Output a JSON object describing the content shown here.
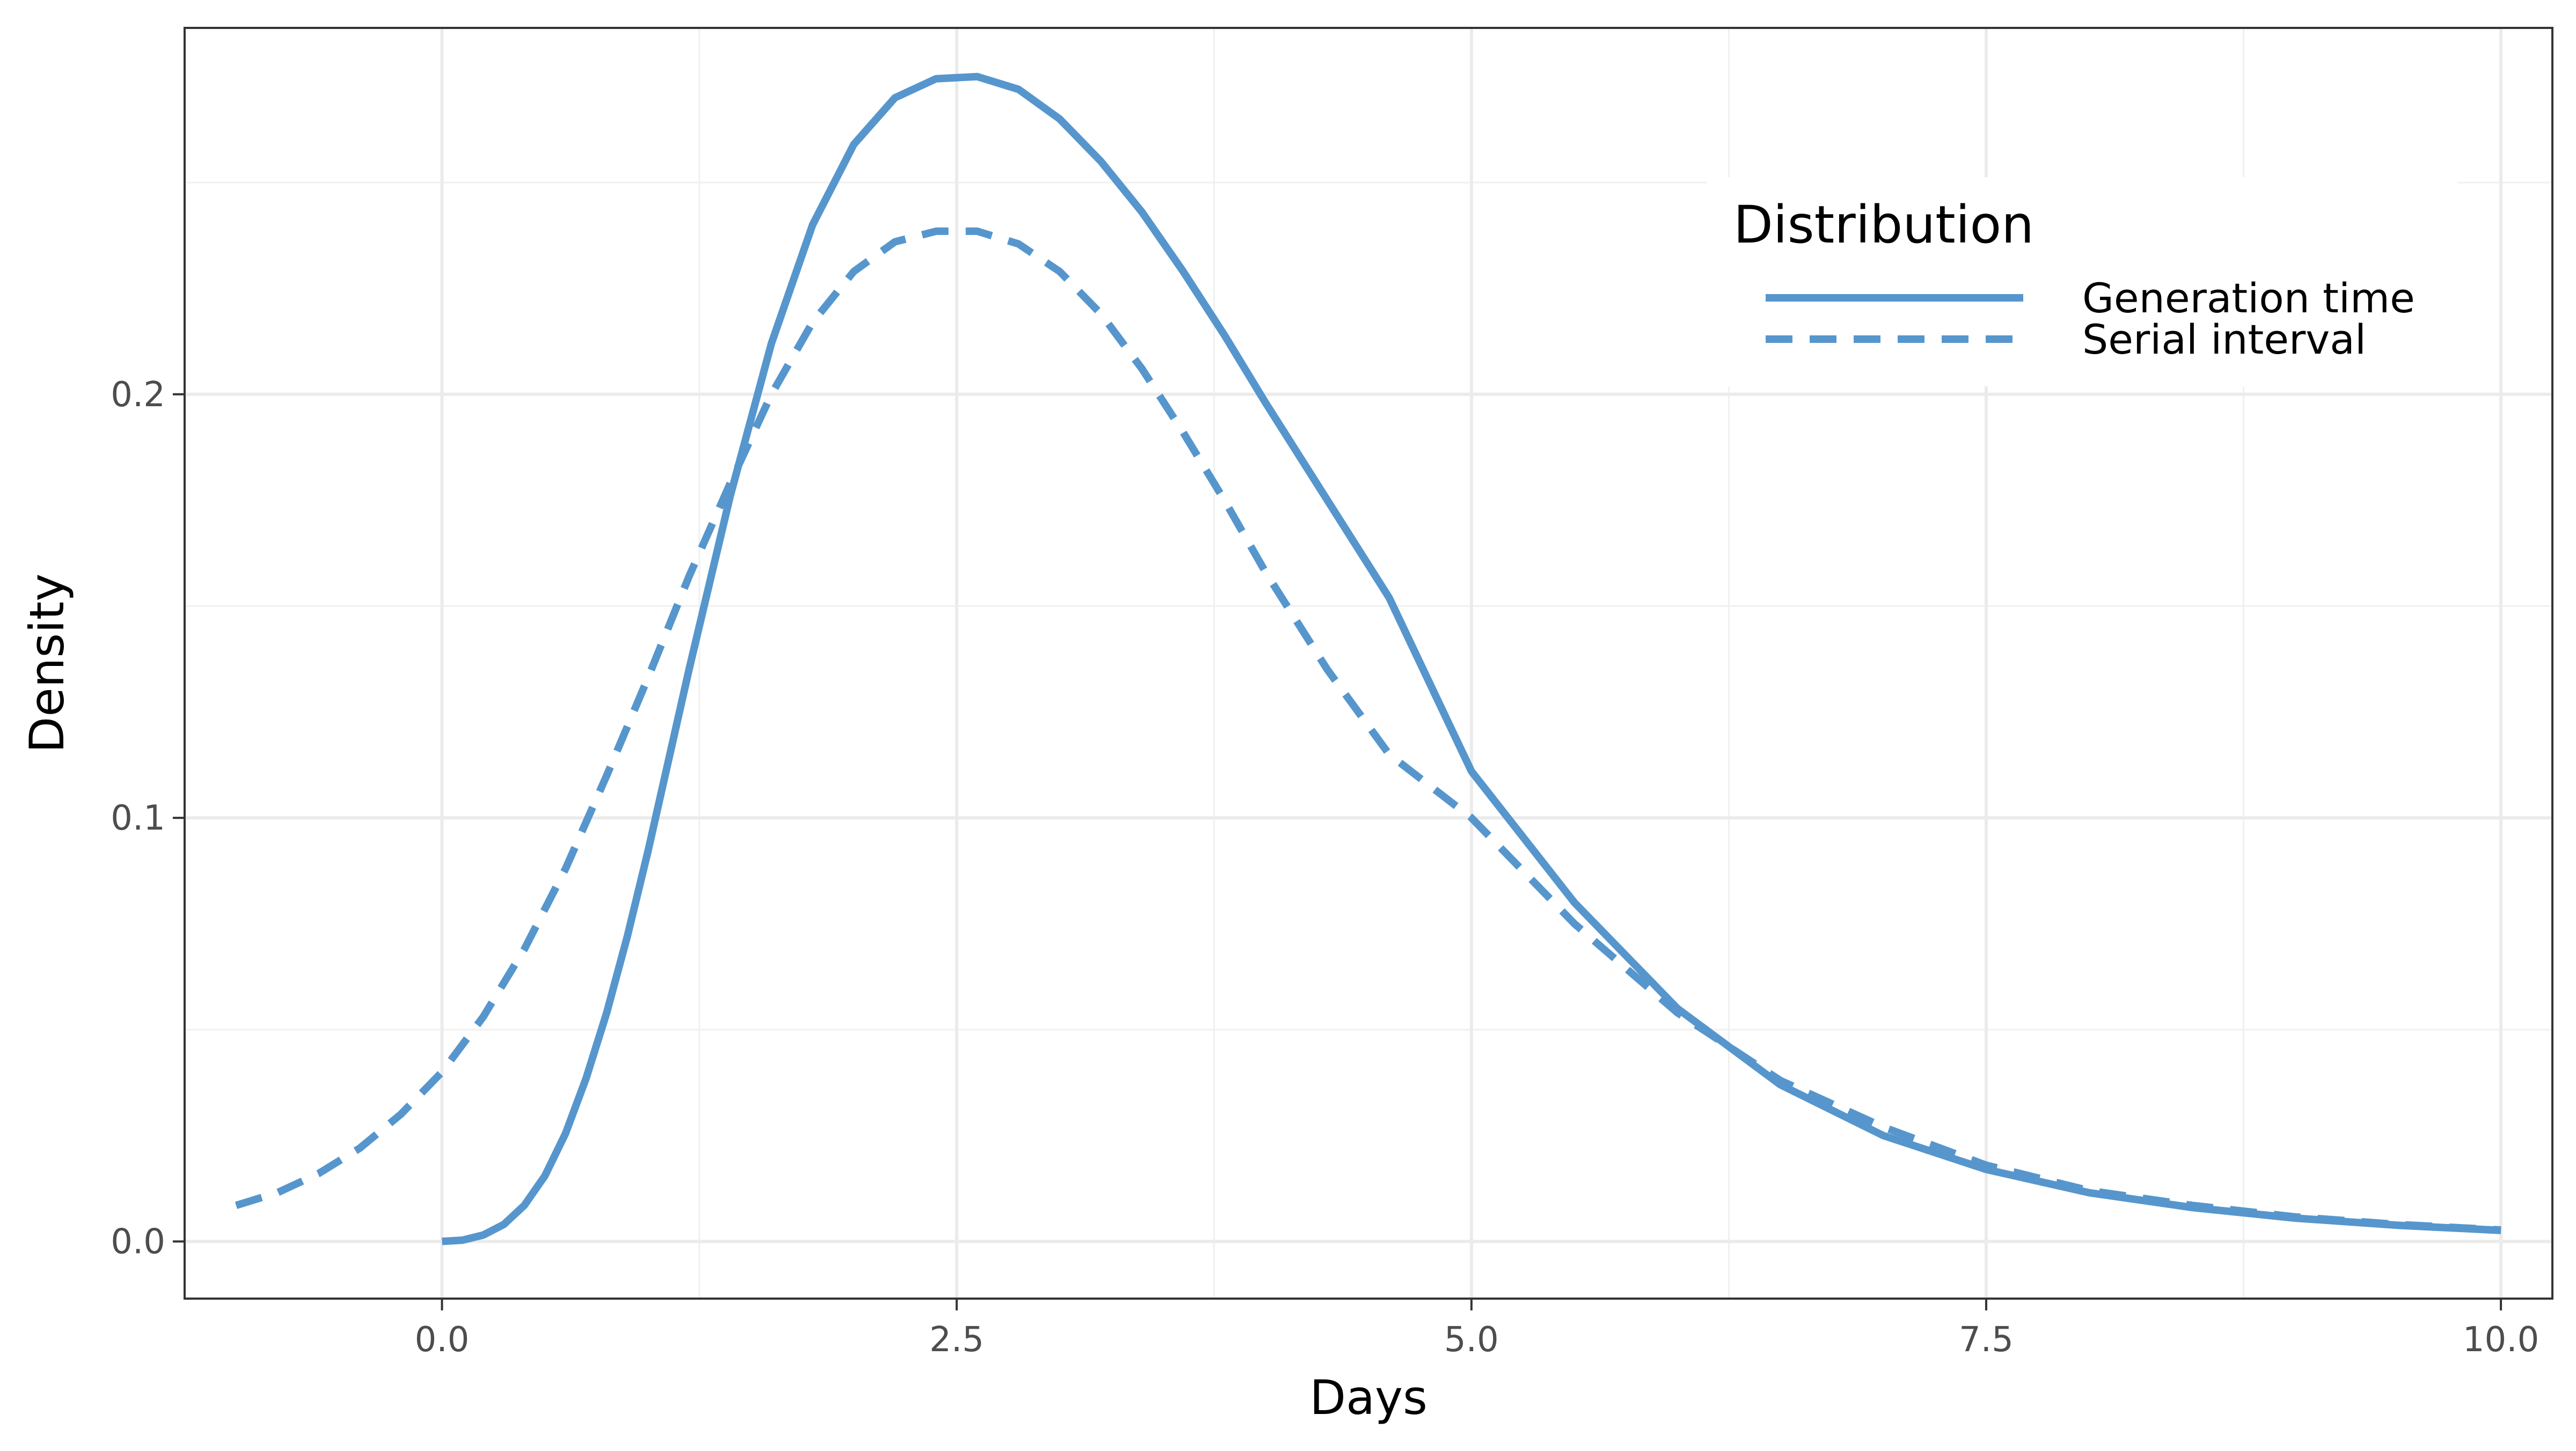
{
  "chart_data": {
    "type": "line",
    "title": "",
    "xlabel": "Days",
    "ylabel": "Density",
    "xlim": [
      -1.25,
      10.25
    ],
    "ylim": [
      -0.0135,
      0.2865
    ],
    "xticks": [
      0.0,
      2.5,
      5.0,
      7.5,
      10.0
    ],
    "xtick_labels": [
      "0.0",
      "2.5",
      "5.0",
      "7.5",
      "10.0"
    ],
    "yticks": [
      0.0,
      0.1,
      0.2
    ],
    "ytick_labels": [
      "0.0",
      "0.1",
      "0.2"
    ],
    "grid": true,
    "legend": {
      "title": "Distribution",
      "position": "top-right"
    },
    "series": [
      {
        "name": "Generation time",
        "line_style": "solid",
        "color": "#5696cd",
        "x": [
          0.0,
          0.1,
          0.2,
          0.3,
          0.4,
          0.5,
          0.6,
          0.7,
          0.8,
          0.9,
          1.0,
          1.2,
          1.4,
          1.6,
          1.8,
          2.0,
          2.2,
          2.4,
          2.6,
          2.8,
          3.0,
          3.2,
          3.4,
          3.6,
          3.8,
          4.0,
          4.3,
          4.6,
          5.0,
          5.5,
          6.0,
          6.5,
          7.0,
          7.5,
          8.0,
          8.5,
          9.0,
          9.5,
          10.0
        ],
        "y": [
          0.0,
          0.0003,
          0.0015,
          0.004,
          0.0085,
          0.0155,
          0.0255,
          0.0385,
          0.054,
          0.072,
          0.092,
          0.135,
          0.176,
          0.212,
          0.24,
          0.259,
          0.27,
          0.2745,
          0.275,
          0.272,
          0.265,
          0.255,
          0.243,
          0.229,
          0.214,
          0.198,
          0.175,
          0.152,
          0.111,
          0.08,
          0.055,
          0.037,
          0.025,
          0.017,
          0.0115,
          0.008,
          0.0055,
          0.0038,
          0.0026
        ]
      },
      {
        "name": "Serial interval",
        "line_style": "dashed",
        "color": "#5696cd",
        "x": [
          -1.0,
          -0.8,
          -0.6,
          -0.4,
          -0.2,
          0.0,
          0.2,
          0.4,
          0.6,
          0.8,
          1.0,
          1.2,
          1.4,
          1.6,
          1.8,
          2.0,
          2.2,
          2.4,
          2.6,
          2.8,
          3.0,
          3.2,
          3.4,
          3.6,
          3.8,
          4.0,
          4.3,
          4.6,
          5.0,
          5.5,
          6.0,
          6.5,
          7.0,
          7.5,
          8.0,
          8.5,
          9.0,
          9.5,
          10.0
        ],
        "y": [
          0.0085,
          0.0115,
          0.016,
          0.022,
          0.03,
          0.04,
          0.053,
          0.069,
          0.088,
          0.11,
          0.133,
          0.157,
          0.179,
          0.2,
          0.217,
          0.229,
          0.236,
          0.2385,
          0.2385,
          0.2355,
          0.229,
          0.219,
          0.206,
          0.191,
          0.175,
          0.158,
          0.135,
          0.115,
          0.1,
          0.075,
          0.054,
          0.038,
          0.027,
          0.018,
          0.012,
          0.0085,
          0.0058,
          0.004,
          0.0027
        ]
      }
    ]
  }
}
